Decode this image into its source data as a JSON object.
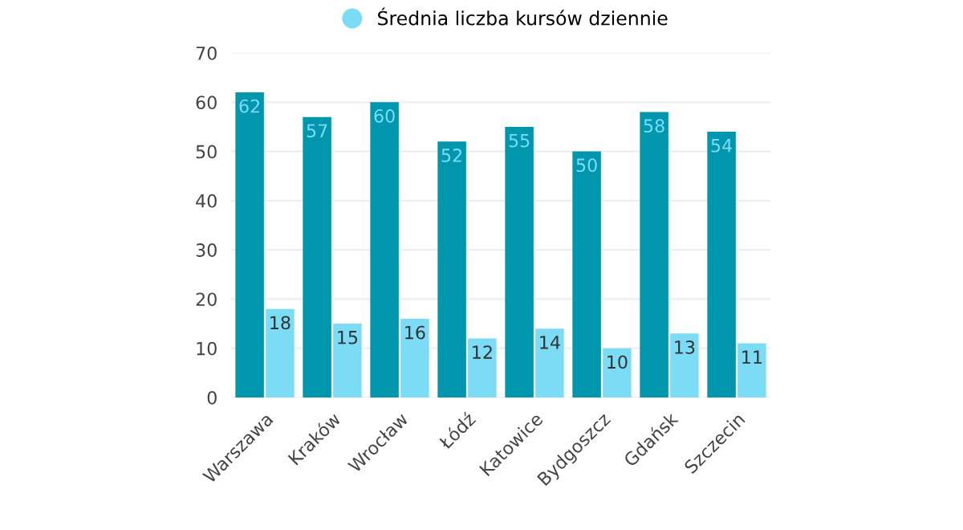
{
  "chart_data": {
    "type": "bar",
    "categories": [
      "Warszawa",
      "Kraków",
      "Wrocław",
      "Łódź",
      "Katowice",
      "Bydgoszcz",
      "Gdańsk",
      "Szczecin"
    ],
    "series": [
      {
        "color": "#0096ad",
        "values": [
          62,
          57,
          60,
          52,
          55,
          50,
          58,
          54
        ]
      },
      {
        "name": "Średnia liczba kursów dziennie",
        "color": "#7ddcf5",
        "values": [
          18,
          15,
          16,
          12,
          14,
          10,
          13,
          11
        ]
      }
    ],
    "ylim": [
      0,
      70
    ],
    "yticks": [
      0,
      10,
      20,
      30,
      40,
      50,
      60,
      70
    ],
    "grid": "y",
    "legend": "top",
    "data_labels": true
  }
}
